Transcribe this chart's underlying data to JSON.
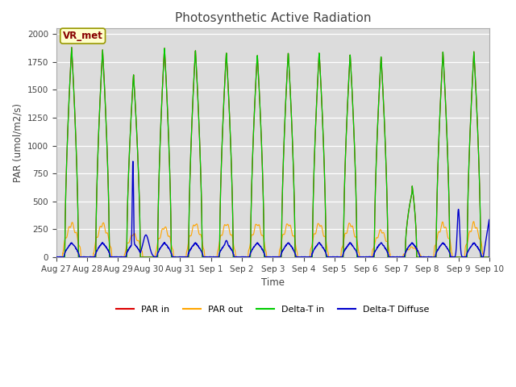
{
  "title": "Photosynthetic Active Radiation",
  "ylabel": "PAR (umol/m2/s)",
  "xlabel": "Time",
  "legend_labels": [
    "PAR in",
    "PAR out",
    "Delta-T in",
    "Delta-T Diffuse"
  ],
  "legend_colors": [
    "#dd0000",
    "#ffa500",
    "#00cc00",
    "#0000cc"
  ],
  "annotation_text": "VR_met",
  "annotation_facecolor": "#ffffcc",
  "annotation_edgecolor": "#999900",
  "annotation_textcolor": "#880000",
  "ylim": [
    0,
    2050
  ],
  "plot_bg": "#dcdcdc",
  "fig_bg": "#ffffff",
  "grid_color": "#ffffff",
  "tick_labels": [
    "Aug 27",
    "Aug 28",
    "Aug 29",
    "Aug 30",
    "Aug 31",
    "Sep 1",
    "Sep 2",
    "Sep 3",
    "Sep 4",
    "Sep 5",
    "Sep 6",
    "Sep 7",
    "Sep 8",
    "Sep 9",
    "Sep 10"
  ],
  "n_points": 2016,
  "days": 14
}
